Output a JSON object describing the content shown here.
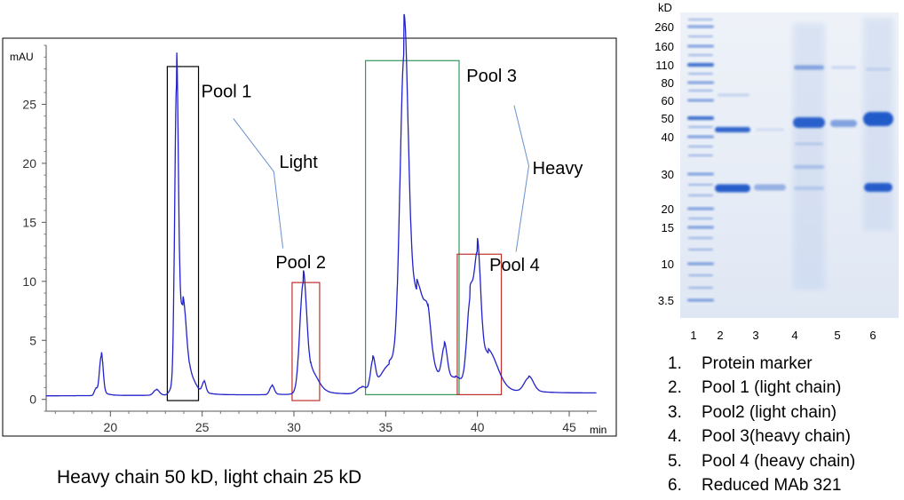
{
  "chart_data": [
    {
      "type": "line",
      "ylabel": "mAU",
      "xlabel": "min",
      "xlim": [
        16.5,
        46.5
      ],
      "ylim": [
        -1,
        30
      ],
      "x_ticks": [
        20,
        25,
        30,
        35,
        40,
        45
      ],
      "y_ticks": [
        0,
        5,
        10,
        15,
        20,
        25
      ],
      "line_color": "#2222cc",
      "baseline": 0.3,
      "peaks": [
        {
          "x": 19.5,
          "y": 3.6,
          "w": 0.1
        },
        {
          "x": 19.2,
          "y": 0.6,
          "w": 0.08
        },
        {
          "x": 22.5,
          "y": 0.5,
          "w": 0.15
        },
        {
          "x": 23.3,
          "y": 0.5,
          "w": 0.12
        },
        {
          "x": 23.6,
          "y": 27.4,
          "w": 0.1
        },
        {
          "x": 23.95,
          "y": 6.5,
          "w": 0.18
        },
        {
          "x": 24.3,
          "y": 1.2,
          "w": 0.3
        },
        {
          "x": 25.1,
          "y": 1.0,
          "w": 0.1
        },
        {
          "x": 28.8,
          "y": 0.8,
          "w": 0.12
        },
        {
          "x": 30.5,
          "y": 9.3,
          "w": 0.18
        },
        {
          "x": 30.9,
          "y": 1.6,
          "w": 0.4
        },
        {
          "x": 33.7,
          "y": 0.6,
          "w": 0.25
        },
        {
          "x": 34.3,
          "y": 2.6,
          "w": 0.13
        },
        {
          "x": 35.2,
          "y": 2.5,
          "w": 0.5
        },
        {
          "x": 36.0,
          "y": 27.0,
          "w": 0.22
        },
        {
          "x": 36.7,
          "y": 8.0,
          "w": 0.55
        },
        {
          "x": 37.3,
          "y": 2.3,
          "w": 0.15
        },
        {
          "x": 38.2,
          "y": 3.2,
          "w": 0.15
        },
        {
          "x": 38.8,
          "y": 1.0,
          "w": 0.4
        },
        {
          "x": 39.6,
          "y": 7.5,
          "w": 0.18
        },
        {
          "x": 40.0,
          "y": 10.2,
          "w": 0.17
        },
        {
          "x": 40.6,
          "y": 3.0,
          "w": 0.5
        },
        {
          "x": 42.8,
          "y": 1.3,
          "w": 0.25
        }
      ],
      "boxes": [
        {
          "x0": 23.1,
          "x1": 24.8,
          "y0": -0.1,
          "y1": 28.2,
          "color": "#000000"
        },
        {
          "x0": 29.9,
          "x1": 31.4,
          "y0": -0.1,
          "y1": 9.9,
          "color": "#c0302c"
        },
        {
          "x0": 33.9,
          "x1": 39.0,
          "y0": 0.4,
          "y1": 28.7,
          "color": "#2e9a5e"
        },
        {
          "x0": 38.9,
          "x1": 41.3,
          "y0": 0.4,
          "y1": 12.3,
          "color": "#c0302c"
        }
      ],
      "annotations": [
        {
          "text": "Pool 1",
          "x": 24.95,
          "y": 25.6
        },
        {
          "text": "Light",
          "x": 29.2,
          "y": 19.6
        },
        {
          "text": "Pool 2",
          "x": 29.0,
          "y": 11.1
        },
        {
          "text": "Pool 3",
          "x": 39.4,
          "y": 26.9
        },
        {
          "text": "Heavy",
          "x": 43.0,
          "y": 19.1
        },
        {
          "text": "Pool 4",
          "x": 40.65,
          "y": 10.9
        }
      ],
      "connector_color": "#6b8fd0"
    },
    {
      "type": "gel",
      "y_axis_title": "kD",
      "markers": [
        "260",
        "160",
        "110",
        "80",
        "60",
        "50",
        "40",
        "30",
        "20",
        "15",
        "10",
        "3.5"
      ],
      "lanes": [
        "1",
        "2",
        "3",
        "4",
        "5",
        "6"
      ],
      "background_color": "#e6ecf5",
      "band_color": "#1f56c8"
    }
  ],
  "legend": [
    {
      "num": "1.",
      "text": "Protein marker"
    },
    {
      "num": "2.",
      "text": "Pool 1 (light chain)"
    },
    {
      "num": "3.",
      "text": "Pool2 (light chain)"
    },
    {
      "num": "4.",
      "text": "Pool 3(heavy chain)"
    },
    {
      "num": "5.",
      "text": "Pool 4 (heavy chain)"
    },
    {
      "num": "6.",
      "text": "Reduced MAb 321"
    }
  ],
  "caption": "Heavy chain 50 kD, light chain 25 kD"
}
